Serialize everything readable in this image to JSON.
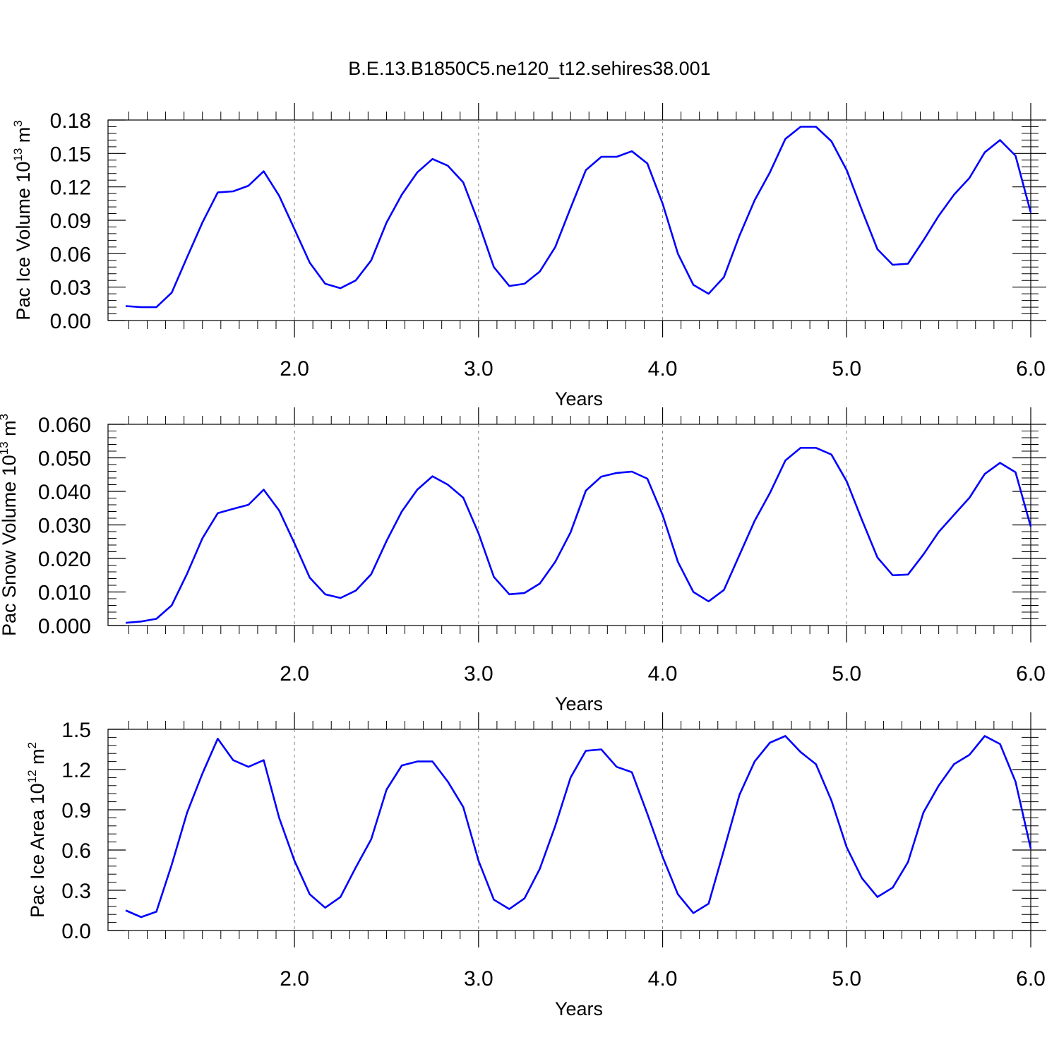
{
  "title": "B.E.13.B1850C5.ne120_t12.sehires38.001",
  "chart_data": [
    {
      "type": "line",
      "ylabel": "Pac Ice Volume",
      "yunit_base": "10",
      "yunit_exp": "13",
      "yunit_m": "m",
      "yunit_m_exp": "3",
      "xlabel": "Years",
      "xlim": [
        1.083,
        6.0
      ],
      "ylim": [
        0.0,
        0.18
      ],
      "yticks": [
        0.0,
        0.03,
        0.06,
        0.09,
        0.12,
        0.15,
        0.18
      ],
      "ytick_labels": [
        "0.00",
        "0.03",
        "0.06",
        "0.09",
        "0.12",
        "0.15",
        "0.18"
      ],
      "xticks": [
        2.0,
        3.0,
        4.0,
        5.0,
        6.0
      ],
      "xtick_labels": [
        "2.0",
        "3.0",
        "4.0",
        "5.0",
        "6.0"
      ],
      "grid": "dashed vertical at major x ticks",
      "line_color": "#0000ff",
      "series": [
        {
          "x": [
            1.083,
            1.167,
            1.25,
            1.333,
            1.417,
            1.5,
            1.583,
            1.667,
            1.75,
            1.833,
            1.917,
            2.0,
            2.083,
            2.167,
            2.25,
            2.333,
            2.417,
            2.5,
            2.583,
            2.667,
            2.75,
            2.833,
            2.917,
            3.0,
            3.083,
            3.167,
            3.25,
            3.333,
            3.417,
            3.5,
            3.583,
            3.667,
            3.75,
            3.833,
            3.917,
            4.0,
            4.083,
            4.167,
            4.25,
            4.333,
            4.417,
            4.5,
            4.583,
            4.667,
            4.75,
            4.833,
            4.917,
            5.0,
            5.083,
            5.167,
            5.25,
            5.333,
            5.417,
            5.5,
            5.583,
            5.667,
            5.75,
            5.833,
            5.917,
            6.0
          ],
          "values": [
            0.013,
            0.012,
            0.012,
            0.025,
            0.057,
            0.088,
            0.115,
            0.116,
            0.121,
            0.134,
            0.112,
            0.082,
            0.052,
            0.033,
            0.029,
            0.036,
            0.054,
            0.088,
            0.113,
            0.133,
            0.145,
            0.139,
            0.124,
            0.088,
            0.048,
            0.031,
            0.033,
            0.044,
            0.066,
            0.101,
            0.135,
            0.147,
            0.147,
            0.152,
            0.141,
            0.105,
            0.06,
            0.032,
            0.024,
            0.039,
            0.076,
            0.108,
            0.133,
            0.163,
            0.174,
            0.174,
            0.161,
            0.135,
            0.099,
            0.064,
            0.05,
            0.051,
            0.072,
            0.094,
            0.113,
            0.128,
            0.151,
            0.162,
            0.148,
            0.097
          ]
        }
      ]
    },
    {
      "type": "line",
      "ylabel": "Pac Snow Volume",
      "yunit_base": "10",
      "yunit_exp": "13",
      "yunit_m": "m",
      "yunit_m_exp": "3",
      "xlabel": "Years",
      "xlim": [
        1.083,
        6.0
      ],
      "ylim": [
        0.0,
        0.06
      ],
      "yticks": [
        0.0,
        0.01,
        0.02,
        0.03,
        0.04,
        0.05,
        0.06
      ],
      "ytick_labels": [
        "0.000",
        "0.010",
        "0.020",
        "0.030",
        "0.040",
        "0.050",
        "0.060"
      ],
      "xticks": [
        2.0,
        3.0,
        4.0,
        5.0,
        6.0
      ],
      "xtick_labels": [
        "2.0",
        "3.0",
        "4.0",
        "5.0",
        "6.0"
      ],
      "grid": "dashed vertical at major x ticks",
      "line_color": "#0000ff",
      "series": [
        {
          "x": [
            1.083,
            1.167,
            1.25,
            1.333,
            1.417,
            1.5,
            1.583,
            1.667,
            1.75,
            1.833,
            1.917,
            2.0,
            2.083,
            2.167,
            2.25,
            2.333,
            2.417,
            2.5,
            2.583,
            2.667,
            2.75,
            2.833,
            2.917,
            3.0,
            3.083,
            3.167,
            3.25,
            3.333,
            3.417,
            3.5,
            3.583,
            3.667,
            3.75,
            3.833,
            3.917,
            4.0,
            4.083,
            4.167,
            4.25,
            4.333,
            4.417,
            4.5,
            4.583,
            4.667,
            4.75,
            4.833,
            4.917,
            5.0,
            5.083,
            5.167,
            5.25,
            5.333,
            5.417,
            5.5,
            5.583,
            5.667,
            5.75,
            5.833,
            5.917,
            6.0
          ],
          "values": [
            0.0008,
            0.0012,
            0.002,
            0.006,
            0.0155,
            0.026,
            0.0335,
            0.0348,
            0.036,
            0.0405,
            0.0343,
            0.0245,
            0.0143,
            0.0093,
            0.0082,
            0.0104,
            0.0153,
            0.0252,
            0.034,
            0.0405,
            0.0445,
            0.042,
            0.0381,
            0.0275,
            0.0145,
            0.0093,
            0.0097,
            0.0125,
            0.019,
            0.0278,
            0.0402,
            0.0444,
            0.0455,
            0.0459,
            0.0438,
            0.033,
            0.019,
            0.01,
            0.0072,
            0.0106,
            0.021,
            0.0312,
            0.0395,
            0.0492,
            0.053,
            0.053,
            0.051,
            0.043,
            0.0315,
            0.0203,
            0.015,
            0.0152,
            0.0212,
            0.0279,
            0.033,
            0.0381,
            0.0452,
            0.0485,
            0.0457,
            0.0295
          ]
        }
      ]
    },
    {
      "type": "line",
      "ylabel": "Pac Ice Area",
      "yunit_base": "10",
      "yunit_exp": "12",
      "yunit_m": "m",
      "yunit_m_exp": "2",
      "xlabel": "Years",
      "xlim": [
        1.083,
        6.0
      ],
      "ylim": [
        0.0,
        1.5
      ],
      "yticks": [
        0.0,
        0.3,
        0.6,
        0.9,
        1.2,
        1.5
      ],
      "ytick_labels": [
        "0.0",
        "0.3",
        "0.6",
        "0.9",
        "1.2",
        "1.5"
      ],
      "xticks": [
        2.0,
        3.0,
        4.0,
        5.0,
        6.0
      ],
      "xtick_labels": [
        "2.0",
        "3.0",
        "4.0",
        "5.0",
        "6.0"
      ],
      "grid": "dashed vertical at major x ticks",
      "line_color": "#0000ff",
      "series": [
        {
          "x": [
            1.083,
            1.167,
            1.25,
            1.333,
            1.417,
            1.5,
            1.583,
            1.667,
            1.75,
            1.833,
            1.917,
            2.0,
            2.083,
            2.167,
            2.25,
            2.333,
            2.417,
            2.5,
            2.583,
            2.667,
            2.75,
            2.833,
            2.917,
            3.0,
            3.083,
            3.167,
            3.25,
            3.333,
            3.417,
            3.5,
            3.583,
            3.667,
            3.75,
            3.833,
            3.917,
            4.0,
            4.083,
            4.167,
            4.25,
            4.333,
            4.417,
            4.5,
            4.583,
            4.667,
            4.75,
            4.833,
            4.917,
            5.0,
            5.083,
            5.167,
            5.25,
            5.333,
            5.417,
            5.5,
            5.583,
            5.667,
            5.75,
            5.833,
            5.917,
            6.0
          ],
          "values": [
            0.15,
            0.1,
            0.14,
            0.49,
            0.88,
            1.17,
            1.43,
            1.27,
            1.22,
            1.27,
            0.84,
            0.52,
            0.27,
            0.17,
            0.25,
            0.47,
            0.68,
            1.05,
            1.23,
            1.26,
            1.26,
            1.11,
            0.92,
            0.52,
            0.23,
            0.16,
            0.24,
            0.46,
            0.78,
            1.14,
            1.34,
            1.35,
            1.22,
            1.18,
            0.87,
            0.55,
            0.27,
            0.13,
            0.2,
            0.6,
            1.01,
            1.26,
            1.4,
            1.45,
            1.33,
            1.24,
            0.97,
            0.62,
            0.39,
            0.25,
            0.32,
            0.51,
            0.88,
            1.08,
            1.24,
            1.31,
            1.45,
            1.39,
            1.11,
            0.61
          ]
        }
      ]
    }
  ]
}
